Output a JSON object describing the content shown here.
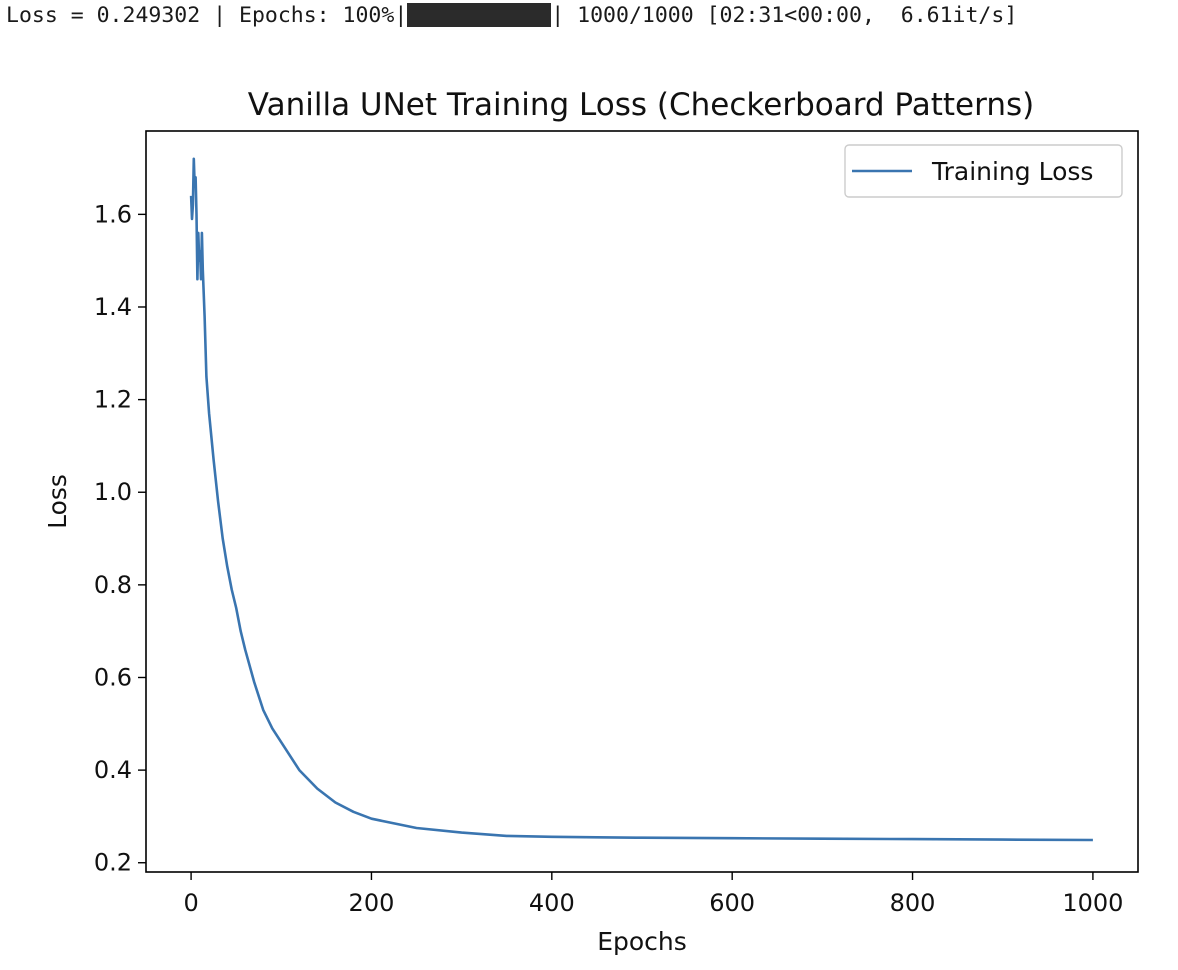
{
  "progress": {
    "loss_text": "Loss = 0.249302 | Epochs: 100%|",
    "bar_fraction": 1.0,
    "status_text": "| 1000/1000 [02:31<00:00,  6.61it/s]"
  },
  "chart_data": {
    "type": "line",
    "title": "Vanilla UNet Training Loss (Checkerboard Patterns)",
    "xlabel": "Epochs",
    "ylabel": "Loss",
    "xlim": [
      -50,
      1050
    ],
    "ylim": [
      0.18,
      1.78
    ],
    "xticks": [
      0,
      200,
      400,
      600,
      800,
      1000
    ],
    "xtick_labels": [
      "0",
      "200",
      "400",
      "600",
      "800",
      "1000"
    ],
    "yticks": [
      0.2,
      0.4,
      0.6,
      0.8,
      1.0,
      1.2,
      1.4,
      1.6
    ],
    "ytick_labels": [
      "0.2",
      "0.4",
      "0.6",
      "0.8",
      "1.0",
      "1.2",
      "1.4",
      "1.6"
    ],
    "grid": false,
    "legend_position": "upper-right",
    "series": [
      {
        "name": "Training Loss",
        "color": "#3a75b0",
        "x": [
          0,
          1,
          2,
          3,
          4,
          5,
          6,
          7,
          8,
          9,
          10,
          11,
          12,
          13,
          14,
          15,
          17,
          20,
          25,
          30,
          35,
          40,
          45,
          50,
          55,
          60,
          70,
          80,
          90,
          100,
          120,
          140,
          160,
          180,
          200,
          250,
          300,
          350,
          400,
          450,
          500,
          600,
          700,
          800,
          900,
          1000
        ],
        "y": [
          1.64,
          1.59,
          1.62,
          1.72,
          1.66,
          1.68,
          1.6,
          1.46,
          1.56,
          1.5,
          1.52,
          1.46,
          1.56,
          1.48,
          1.43,
          1.38,
          1.25,
          1.17,
          1.07,
          0.98,
          0.9,
          0.84,
          0.79,
          0.75,
          0.7,
          0.66,
          0.59,
          0.53,
          0.49,
          0.46,
          0.4,
          0.36,
          0.33,
          0.31,
          0.295,
          0.275,
          0.265,
          0.258,
          0.256,
          0.255,
          0.254,
          0.253,
          0.252,
          0.251,
          0.25,
          0.249
        ]
      }
    ]
  }
}
